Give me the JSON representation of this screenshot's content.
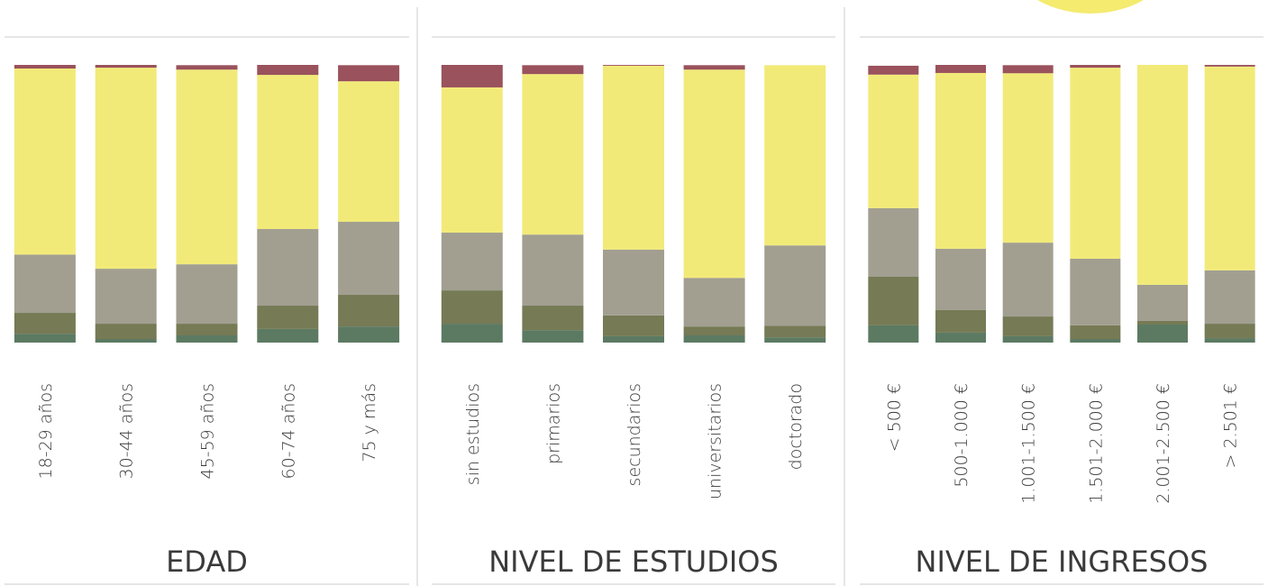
{
  "chart_data": [
    {
      "type": "bar",
      "stacked": true,
      "title": "EDAD",
      "categories": [
        "18-29 años",
        "30-44 años",
        "45-59 años",
        "60-74 años",
        "75 y más"
      ],
      "ylim": [
        0,
        100
      ],
      "series": [
        {
          "color": "#5c7a62",
          "values": [
            3.2,
            1.3,
            2.6,
            4.9,
            5.8
          ]
        },
        {
          "color": "#767a55",
          "values": [
            7.5,
            5.5,
            4.2,
            8.4,
            11.4
          ]
        },
        {
          "color": "#a29f91",
          "values": [
            21,
            19.8,
            21.4,
            27.6,
            26.3
          ]
        },
        {
          "color": "#f2ea78",
          "values": [
            67,
            72.4,
            70.1,
            55.5,
            50.6
          ]
        },
        {
          "color": "#9a525c",
          "values": [
            1.3,
            1,
            1.6,
            3.6,
            5.8
          ]
        }
      ]
    },
    {
      "type": "bar",
      "stacked": true,
      "title": "NIVEL DE ESTUDIOS",
      "categories": [
        "sin estudios",
        "primarios",
        "secundarios",
        "universitarios",
        "doctorado"
      ],
      "ylim": [
        0,
        100
      ],
      "series": [
        {
          "color": "#5c7a62",
          "values": [
            6.8,
            4.5,
            2.3,
            2.6,
            1.9
          ]
        },
        {
          "color": "#767a55",
          "values": [
            12,
            8.8,
            7.5,
            3.2,
            4.2
          ]
        },
        {
          "color": "#a29f91",
          "values": [
            20.8,
            25.6,
            23.7,
            17.5,
            28.9
          ]
        },
        {
          "color": "#f2ea78",
          "values": [
            52.3,
            57.8,
            66.2,
            75,
            64.9
          ]
        },
        {
          "color": "#9a525c",
          "values": [
            8.1,
            3.2,
            0.3,
            1.6,
            0
          ]
        }
      ]
    },
    {
      "type": "bar",
      "stacked": true,
      "title": "NIVEL DE INGRESOS",
      "categories": [
        "< 500 €",
        "500-1.000 €",
        "1.001-1.500 €",
        "1.501-2.000 €",
        "2.001-2.500 €",
        "> 2.501 €"
      ],
      "ylim": [
        0,
        100
      ],
      "series": [
        {
          "color": "#5c7a62",
          "values": [
            6.2,
            3.6,
            2.3,
            1.3,
            6.5,
            1.6
          ]
        },
        {
          "color": "#767a55",
          "values": [
            17.5,
            8.1,
            7.1,
            4.9,
            1.3,
            5.2
          ]
        },
        {
          "color": "#a29f91",
          "values": [
            24.7,
            22.1,
            26.6,
            24,
            13,
            19.2
          ]
        },
        {
          "color": "#f2ea78",
          "values": [
            48.1,
            63.3,
            61,
            68.8,
            79.2,
            73.4
          ]
        },
        {
          "color": "#9a525c",
          "values": [
            3.2,
            2.9,
            2.9,
            1,
            0,
            0.6
          ]
        }
      ]
    }
  ]
}
